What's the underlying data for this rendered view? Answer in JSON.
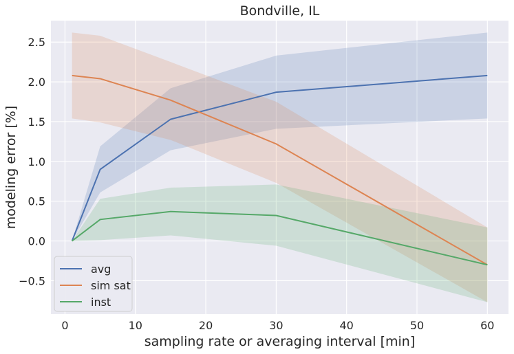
{
  "chart_data": {
    "type": "line",
    "title": "Bondville, IL",
    "xlabel": "sampling rate or averaging interval [min]",
    "ylabel": "modeling error [%]",
    "xlim": [
      -2,
      63
    ],
    "ylim": [
      -0.92,
      2.77
    ],
    "xticks": [
      0,
      10,
      20,
      30,
      40,
      50,
      60
    ],
    "yticks": [
      -0.5,
      0.0,
      0.5,
      1.0,
      1.5,
      2.0,
      2.5
    ],
    "xtick_labels": [
      "0",
      "10",
      "20",
      "30",
      "40",
      "50",
      "60"
    ],
    "ytick_labels": [
      "−0.5",
      "0.0",
      "0.5",
      "1.0",
      "1.5",
      "2.0",
      "2.5"
    ],
    "grid": true,
    "legend_position": "lower-left",
    "x": [
      1,
      5,
      15,
      30,
      60
    ],
    "series": [
      {
        "name": "avg",
        "color": "#4c72b0",
        "values": [
          0.0,
          0.9,
          1.53,
          1.87,
          2.08
        ],
        "band_low": [
          0.0,
          0.61,
          1.14,
          1.41,
          1.54
        ],
        "band_high": [
          0.0,
          1.19,
          1.92,
          2.33,
          2.62
        ]
      },
      {
        "name": "sim sat",
        "color": "#dd8452",
        "values": [
          2.08,
          2.04,
          1.77,
          1.22,
          -0.3
        ],
        "band_low": [
          1.54,
          1.49,
          1.27,
          0.73,
          -0.77
        ],
        "band_high": [
          2.62,
          2.58,
          2.25,
          1.75,
          0.17
        ]
      },
      {
        "name": "inst",
        "color": "#55a868",
        "values": [
          0.0,
          0.27,
          0.37,
          0.32,
          -0.3
        ],
        "band_low": [
          0.0,
          0.01,
          0.07,
          -0.06,
          -0.77
        ],
        "band_high": [
          0.0,
          0.53,
          0.67,
          0.71,
          0.17
        ]
      }
    ]
  }
}
